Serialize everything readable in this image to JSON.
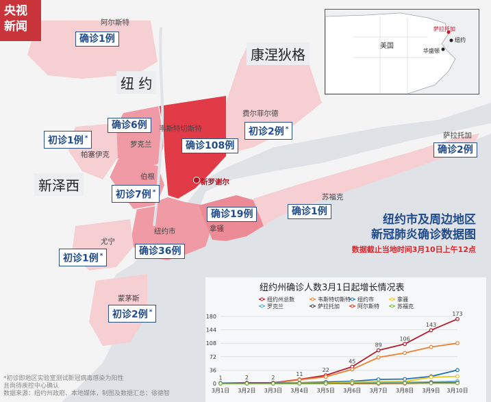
{
  "logo": {
    "line1": "央视",
    "line2": "新闻"
  },
  "regions": {
    "connecticut": "康涅狄格",
    "new_york": "纽 约",
    "new_jersey": "新泽西"
  },
  "places": {
    "albany_top": "阿尔斯特",
    "westchester": "韦斯特切斯特",
    "fairfield": "费尔菲尔德",
    "rockland": "罗克兰",
    "passaic": "帕塞伊克",
    "bergen": "伯根",
    "new_rochelle": "新罗谢尔",
    "nyc": "纽约市",
    "nassau": "拿骚",
    "suffolk": "苏福克",
    "union": "尤宁",
    "monmouth": "蒙茅斯",
    "saratoga": "萨拉托加"
  },
  "case_boxes": {
    "ulster": {
      "text": "确诊1例",
      "star": false
    },
    "rockland": {
      "text": "确诊6例",
      "star": false
    },
    "westchester": {
      "text": "确诊108例",
      "star": false
    },
    "fairfield": {
      "text": "初诊2例",
      "star": true
    },
    "passaic": {
      "text": "初诊1例",
      "star": true
    },
    "bergen": {
      "text": "初诊7例",
      "star": true
    },
    "nassau": {
      "text": "确诊19例",
      "star": false
    },
    "suffolk": {
      "text": "确诊1例",
      "star": false
    },
    "saratoga": {
      "text": "确诊2例",
      "star": false
    },
    "nyc": {
      "text": "确诊36例",
      "star": false
    },
    "union": {
      "text": "初诊1例",
      "star": true
    },
    "monmouth": {
      "text": "初诊2例",
      "star": true
    }
  },
  "star_symbol": "*",
  "inset": {
    "usa": "美国",
    "saratoga": "萨拉托加",
    "new_york": "纽约",
    "washington": "华盛顿"
  },
  "title": {
    "line1": "纽约市及周边地区",
    "line2": "新冠肺炎确诊数据图",
    "note": "数据截止当地时间3月10日上午12点"
  },
  "footnote": {
    "line1": "*初诊即地区实验室测试新冠病毒感染为阳性",
    "line2": "且尚待疾控中心确认",
    "line3": "数据来源：纽约州政府、本地媒体，制图及数据汇总：徐德智"
  },
  "colors": {
    "highlight": "#e23b48",
    "medium": "#f09aa4",
    "light": "#f6cfd3",
    "lighter": "#fae3e5",
    "water": "#dfe3e8",
    "land": "#f4f4f4",
    "box_border": "#2a4f8f",
    "title_blue": "#1f4a8c",
    "note_red": "#d9262b"
  },
  "chart_data": {
    "type": "line",
    "title": "纽约州确诊人数3月1日起增长情况表",
    "categories": [
      "3月1日",
      "3月2日",
      "3月3日",
      "3月4日",
      "3月5日",
      "3月6日",
      "3月7日",
      "3月8日",
      "3月9日",
      "3月10日"
    ],
    "yticks": [
      0,
      36,
      72,
      108,
      144,
      180
    ],
    "ylim": [
      0,
      180
    ],
    "legend_position": "top",
    "series": [
      {
        "name": "纽约州总数",
        "color": "#b5182b",
        "values": [
          1,
          2,
          2,
          11,
          22,
          45,
          89,
          106,
          143,
          173
        ],
        "labels": true
      },
      {
        "name": "韦斯特切斯特",
        "color": "#ee7f2d",
        "values": [
          0,
          0,
          1,
          10,
          18,
          38,
          70,
          82,
          98,
          108
        ]
      },
      {
        "name": "纽约市",
        "color": "#1f6fb4",
        "values": [
          1,
          1,
          1,
          2,
          4,
          6,
          11,
          12,
          19,
          36
        ]
      },
      {
        "name": "拿骚",
        "color": "#f0c419",
        "values": [
          0,
          0,
          0,
          1,
          1,
          4,
          5,
          5,
          17,
          19
        ]
      },
      {
        "name": "罗克兰",
        "color": "#4fa3e0",
        "values": [
          0,
          0,
          0,
          0,
          0,
          1,
          2,
          3,
          4,
          6
        ]
      },
      {
        "name": "萨拉托加",
        "color": "#3c3c3c",
        "values": [
          0,
          0,
          0,
          0,
          0,
          0,
          0,
          1,
          2,
          2
        ]
      },
      {
        "name": "阿尔斯特",
        "color": "#e0311d",
        "values": [
          0,
          0,
          0,
          0,
          0,
          0,
          0,
          0,
          1,
          1
        ]
      },
      {
        "name": "苏福克",
        "color": "#6fb43f",
        "values": [
          0,
          0,
          0,
          0,
          0,
          1,
          1,
          1,
          1,
          1
        ]
      }
    ]
  }
}
